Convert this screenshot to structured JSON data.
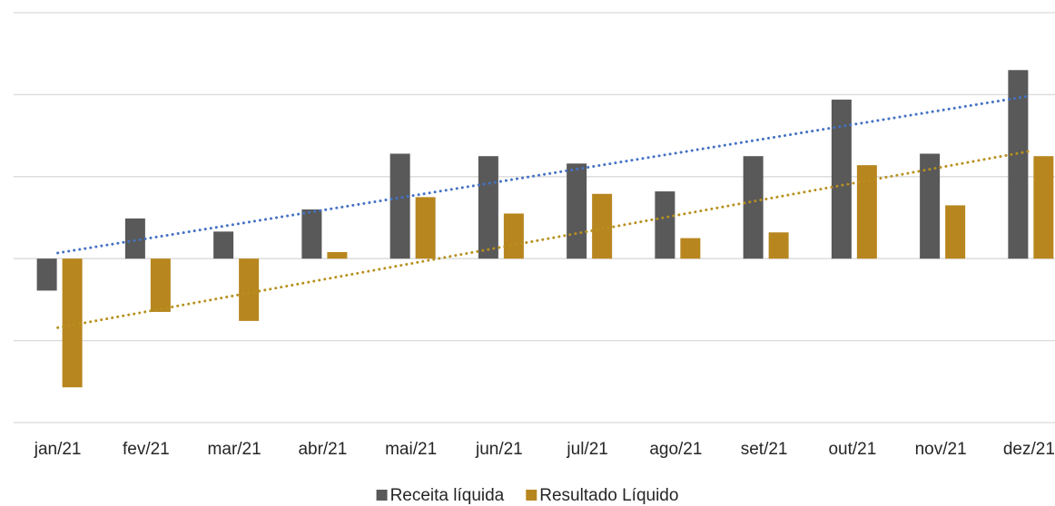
{
  "chart_data": {
    "type": "bar",
    "categories": [
      "jan/21",
      "fev/21",
      "mar/21",
      "abr/21",
      "mai/21",
      "jun/21",
      "jul/21",
      "ago/21",
      "set/21",
      "out/21",
      "nov/21",
      "dez/21"
    ],
    "series": [
      {
        "name": "Receita líquida",
        "color": "#595959",
        "trendline_color": "#4472c4",
        "values": [
          -0.39,
          0.49,
          0.33,
          0.6,
          1.28,
          1.25,
          1.16,
          0.82,
          1.25,
          1.94,
          1.28,
          2.3
        ]
      },
      {
        "name": "Resultado Líquido",
        "color": "#b8861f",
        "trendline_color": "#b8901f",
        "values": [
          -1.57,
          -0.65,
          -0.76,
          0.08,
          0.75,
          0.55,
          0.79,
          0.25,
          0.32,
          1.14,
          0.65,
          1.25
        ]
      }
    ],
    "ylim": [
      -2,
      3
    ],
    "yticks": [
      -2,
      -1,
      0,
      1,
      2,
      3
    ],
    "grid": true,
    "trendline": "linear",
    "legend": "bottom"
  }
}
